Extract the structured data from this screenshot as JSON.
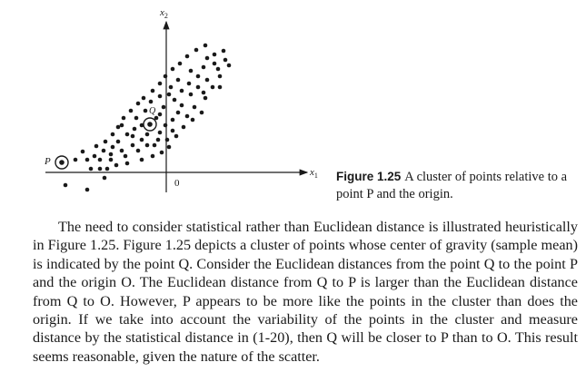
{
  "figure": {
    "axis_x_label": "x",
    "axis_x_subscript": "1",
    "axis_y_label": "x",
    "axis_y_subscript": "2",
    "origin_label": "0",
    "point_p_label": "P",
    "point_q_label": "Q"
  },
  "caption": {
    "label": "Figure 1.25",
    "text": "A cluster of points relative to a point P and the origin."
  },
  "paragraph": "The need to consider statistical rather than Euclidean distance is illustrated heuristically in Figure 1.25. Figure 1.25 depicts a cluster of points whose center of gravity (sample mean) is indicated by the point Q. Consider the Euclidean distances from the point Q to the point P and the origin O. The Euclidean distance from Q to P is larger than the Euclidean distance from Q to O. However, P appears to be more like the points in the cluster than does the origin. If we take into account the variability of the points in the cluster and measure distance by the statistical distance in (1-20), then Q will be closer to P than to O. This result seems reasonable, given the nature of the scatter."
}
